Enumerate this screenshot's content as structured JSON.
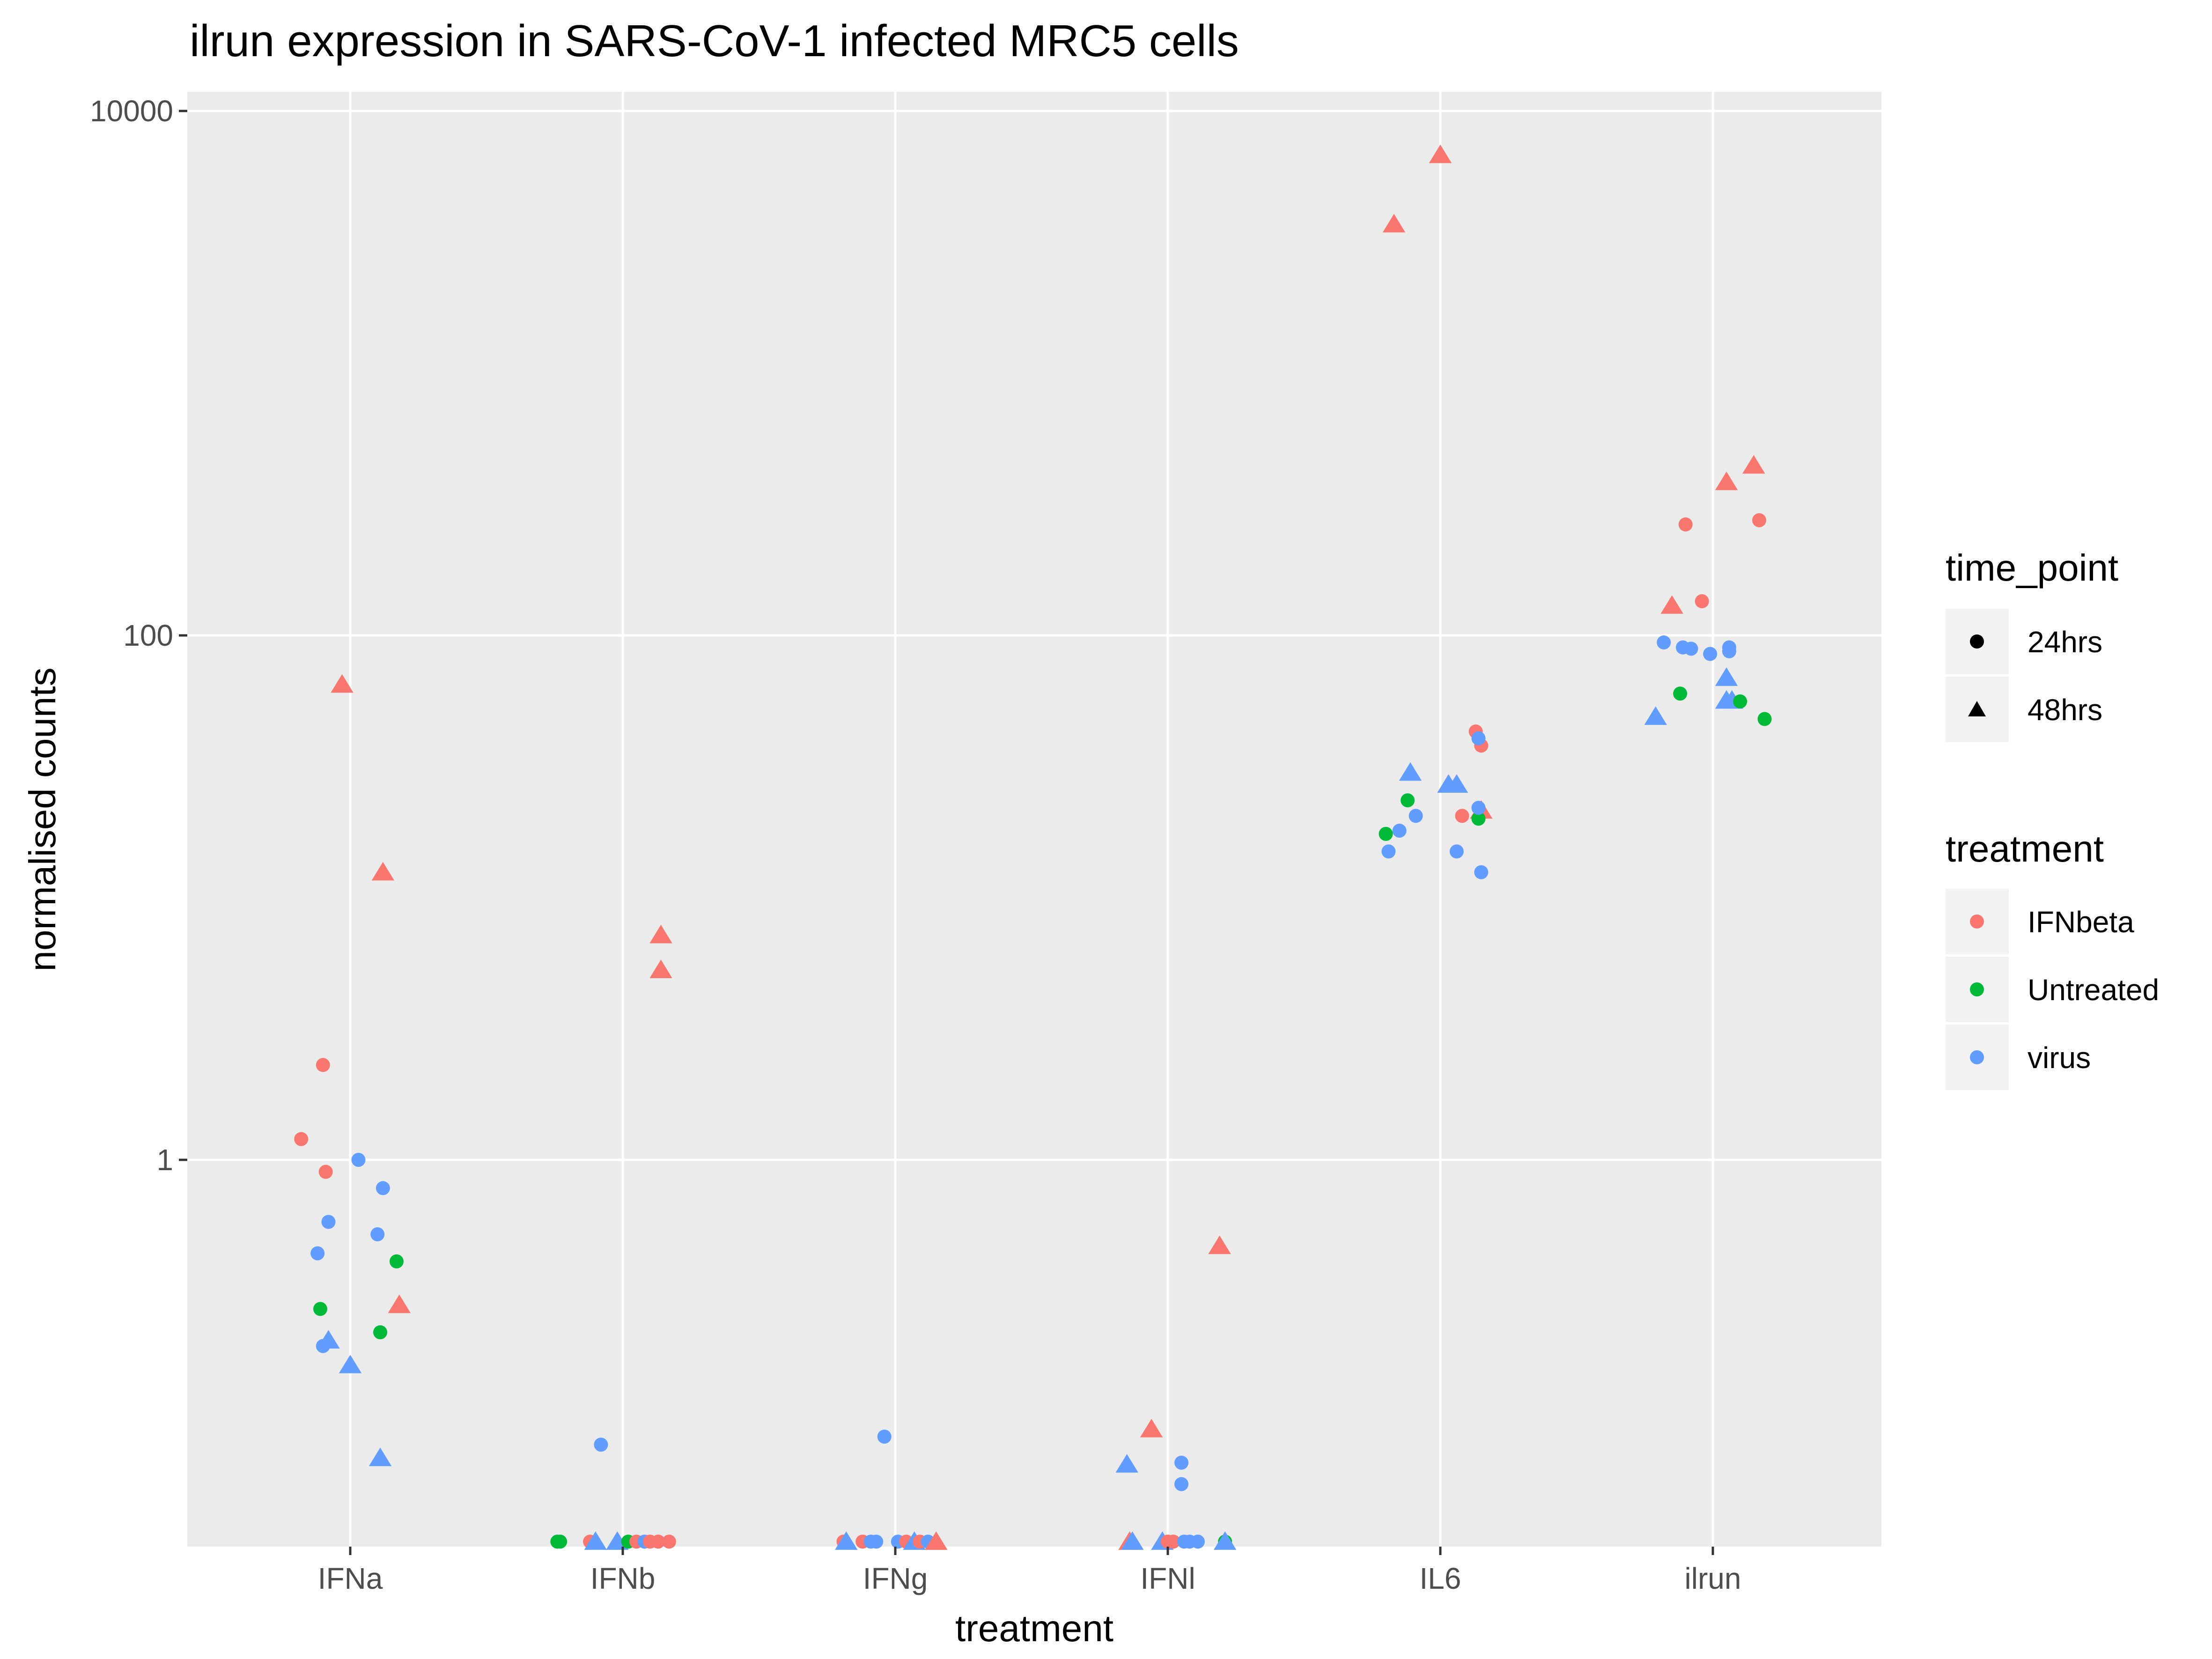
{
  "chart_data": {
    "type": "scatter",
    "title": "ilrun expression in SARS-CoV-1 infected MRC5 cells",
    "xlabel": "treatment",
    "ylabel": "normalised counts",
    "x_scale": "categorical",
    "y_scale": "log10",
    "ylim": [
      0.035,
      10000
    ],
    "y_ticks": [
      1,
      100,
      10000
    ],
    "y_tick_labels": [
      "1",
      "100",
      "10000"
    ],
    "categories": [
      "IFNa",
      "IFNb",
      "IFNg",
      "IFNl",
      "IL6",
      "ilrun"
    ],
    "grid": true,
    "legend_position": "right",
    "legends": [
      {
        "title": "time_point",
        "key": "time_point",
        "entries": [
          {
            "label": "24hrs",
            "shape": "circle"
          },
          {
            "label": "48hrs",
            "shape": "triangle"
          }
        ]
      },
      {
        "title": "treatment",
        "key": "treatment",
        "entries": [
          {
            "label": "IFNbeta",
            "color": "#F8766D"
          },
          {
            "label": "Untreated",
            "color": "#00BA38"
          },
          {
            "label": "virus",
            "color": "#619CFF"
          }
        ]
      }
    ],
    "points": [
      {
        "category": "IFNa",
        "jitter": -0.18,
        "y": 1.2,
        "treatment": "IFNbeta",
        "time_point": "24hrs"
      },
      {
        "category": "IFNa",
        "jitter": -0.1,
        "y": 2.3,
        "treatment": "IFNbeta",
        "time_point": "24hrs"
      },
      {
        "category": "IFNa",
        "jitter": -0.09,
        "y": 0.9,
        "treatment": "IFNbeta",
        "time_point": "24hrs"
      },
      {
        "category": "IFNa",
        "jitter": -0.03,
        "y": 65,
        "treatment": "IFNbeta",
        "time_point": "48hrs"
      },
      {
        "category": "IFNa",
        "jitter": 0.12,
        "y": 12.5,
        "treatment": "IFNbeta",
        "time_point": "48hrs"
      },
      {
        "category": "IFNa",
        "jitter": 0.18,
        "y": 0.28,
        "treatment": "IFNbeta",
        "time_point": "48hrs"
      },
      {
        "category": "IFNa",
        "jitter": -0.11,
        "y": 0.27,
        "treatment": "Untreated",
        "time_point": "24hrs"
      },
      {
        "category": "IFNa",
        "jitter": 0.11,
        "y": 0.22,
        "treatment": "Untreated",
        "time_point": "24hrs"
      },
      {
        "category": "IFNa",
        "jitter": 0.17,
        "y": 0.41,
        "treatment": "Untreated",
        "time_point": "24hrs"
      },
      {
        "category": "IFNa",
        "jitter": 0.03,
        "y": 1.0,
        "treatment": "virus",
        "time_point": "24hrs"
      },
      {
        "category": "IFNa",
        "jitter": 0.12,
        "y": 0.78,
        "treatment": "virus",
        "time_point": "24hrs"
      },
      {
        "category": "IFNa",
        "jitter": -0.08,
        "y": 0.58,
        "treatment": "virus",
        "time_point": "24hrs"
      },
      {
        "category": "IFNa",
        "jitter": 0.1,
        "y": 0.52,
        "treatment": "virus",
        "time_point": "24hrs"
      },
      {
        "category": "IFNa",
        "jitter": -0.12,
        "y": 0.44,
        "treatment": "virus",
        "time_point": "24hrs"
      },
      {
        "category": "IFNa",
        "jitter": -0.1,
        "y": 0.195,
        "treatment": "virus",
        "time_point": "24hrs"
      },
      {
        "category": "IFNa",
        "jitter": -0.08,
        "y": 0.205,
        "treatment": "virus",
        "time_point": "48hrs"
      },
      {
        "category": "IFNa",
        "jitter": 0.0,
        "y": 0.165,
        "treatment": "virus",
        "time_point": "48hrs"
      },
      {
        "category": "IFNa",
        "jitter": 0.11,
        "y": 0.073,
        "treatment": "virus",
        "time_point": "48hrs"
      },
      {
        "category": "IFNb",
        "jitter": 0.14,
        "y": 7.2,
        "treatment": "IFNbeta",
        "time_point": "48hrs"
      },
      {
        "category": "IFNb",
        "jitter": 0.14,
        "y": 5.3,
        "treatment": "IFNbeta",
        "time_point": "48hrs"
      },
      {
        "category": "IFNb",
        "jitter": -0.08,
        "y": 0.082,
        "treatment": "virus",
        "time_point": "24hrs"
      },
      {
        "category": "IFNb",
        "jitter": -0.24,
        "y": 0.035,
        "treatment": "Untreated",
        "time_point": "24hrs"
      },
      {
        "category": "IFNb",
        "jitter": -0.23,
        "y": 0.035,
        "treatment": "Untreated",
        "time_point": "24hrs"
      },
      {
        "category": "IFNb",
        "jitter": -0.12,
        "y": 0.035,
        "treatment": "IFNbeta",
        "time_point": "24hrs"
      },
      {
        "category": "IFNb",
        "jitter": -0.1,
        "y": 0.035,
        "treatment": "virus",
        "time_point": "48hrs"
      },
      {
        "category": "IFNb",
        "jitter": -0.02,
        "y": 0.035,
        "treatment": "virus",
        "time_point": "48hrs"
      },
      {
        "category": "IFNb",
        "jitter": 0.02,
        "y": 0.035,
        "treatment": "Untreated",
        "time_point": "24hrs"
      },
      {
        "category": "IFNb",
        "jitter": 0.05,
        "y": 0.035,
        "treatment": "IFNbeta",
        "time_point": "24hrs"
      },
      {
        "category": "IFNb",
        "jitter": 0.08,
        "y": 0.035,
        "treatment": "virus",
        "time_point": "24hrs"
      },
      {
        "category": "IFNb",
        "jitter": 0.1,
        "y": 0.035,
        "treatment": "IFNbeta",
        "time_point": "24hrs"
      },
      {
        "category": "IFNb",
        "jitter": 0.13,
        "y": 0.035,
        "treatment": "IFNbeta",
        "time_point": "24hrs"
      },
      {
        "category": "IFNb",
        "jitter": 0.17,
        "y": 0.035,
        "treatment": "IFNbeta",
        "time_point": "24hrs"
      },
      {
        "category": "IFNg",
        "jitter": -0.04,
        "y": 0.088,
        "treatment": "virus",
        "time_point": "24hrs"
      },
      {
        "category": "IFNg",
        "jitter": -0.19,
        "y": 0.035,
        "treatment": "IFNbeta",
        "time_point": "24hrs"
      },
      {
        "category": "IFNg",
        "jitter": -0.18,
        "y": 0.035,
        "treatment": "virus",
        "time_point": "48hrs"
      },
      {
        "category": "IFNg",
        "jitter": -0.12,
        "y": 0.035,
        "treatment": "IFNbeta",
        "time_point": "24hrs"
      },
      {
        "category": "IFNg",
        "jitter": -0.09,
        "y": 0.035,
        "treatment": "virus",
        "time_point": "24hrs"
      },
      {
        "category": "IFNg",
        "jitter": -0.07,
        "y": 0.035,
        "treatment": "virus",
        "time_point": "24hrs"
      },
      {
        "category": "IFNg",
        "jitter": 0.01,
        "y": 0.035,
        "treatment": "virus",
        "time_point": "24hrs"
      },
      {
        "category": "IFNg",
        "jitter": 0.04,
        "y": 0.035,
        "treatment": "IFNbeta",
        "time_point": "24hrs"
      },
      {
        "category": "IFNg",
        "jitter": 0.07,
        "y": 0.035,
        "treatment": "virus",
        "time_point": "48hrs"
      },
      {
        "category": "IFNg",
        "jitter": 0.09,
        "y": 0.035,
        "treatment": "IFNbeta",
        "time_point": "24hrs"
      },
      {
        "category": "IFNg",
        "jitter": 0.12,
        "y": 0.035,
        "treatment": "virus",
        "time_point": "24hrs"
      },
      {
        "category": "IFNg",
        "jitter": 0.15,
        "y": 0.035,
        "treatment": "IFNbeta",
        "time_point": "48hrs"
      },
      {
        "category": "IFNl",
        "jitter": 0.19,
        "y": 0.47,
        "treatment": "IFNbeta",
        "time_point": "48hrs"
      },
      {
        "category": "IFNl",
        "jitter": -0.06,
        "y": 0.094,
        "treatment": "IFNbeta",
        "time_point": "48hrs"
      },
      {
        "category": "IFNl",
        "jitter": -0.15,
        "y": 0.069,
        "treatment": "virus",
        "time_point": "48hrs"
      },
      {
        "category": "IFNl",
        "jitter": 0.05,
        "y": 0.07,
        "treatment": "virus",
        "time_point": "24hrs"
      },
      {
        "category": "IFNl",
        "jitter": 0.05,
        "y": 0.058,
        "treatment": "virus",
        "time_point": "24hrs"
      },
      {
        "category": "IFNl",
        "jitter": -0.14,
        "y": 0.035,
        "treatment": "IFNbeta",
        "time_point": "48hrs"
      },
      {
        "category": "IFNl",
        "jitter": -0.13,
        "y": 0.035,
        "treatment": "virus",
        "time_point": "48hrs"
      },
      {
        "category": "IFNl",
        "jitter": -0.02,
        "y": 0.035,
        "treatment": "virus",
        "time_point": "48hrs"
      },
      {
        "category": "IFNl",
        "jitter": 0.0,
        "y": 0.035,
        "treatment": "IFNbeta",
        "time_point": "24hrs"
      },
      {
        "category": "IFNl",
        "jitter": 0.02,
        "y": 0.035,
        "treatment": "IFNbeta",
        "time_point": "24hrs"
      },
      {
        "category": "IFNl",
        "jitter": 0.06,
        "y": 0.035,
        "treatment": "virus",
        "time_point": "24hrs"
      },
      {
        "category": "IFNl",
        "jitter": 0.08,
        "y": 0.035,
        "treatment": "virus",
        "time_point": "24hrs"
      },
      {
        "category": "IFNl",
        "jitter": 0.11,
        "y": 0.035,
        "treatment": "virus",
        "time_point": "24hrs"
      },
      {
        "category": "IFNl",
        "jitter": 0.21,
        "y": 0.035,
        "treatment": "Untreated",
        "time_point": "24hrs"
      },
      {
        "category": "IFNl",
        "jitter": 0.21,
        "y": 0.035,
        "treatment": "virus",
        "time_point": "48hrs"
      },
      {
        "category": "IL6",
        "jitter": 0.0,
        "y": 6800,
        "treatment": "IFNbeta",
        "time_point": "48hrs"
      },
      {
        "category": "IL6",
        "jitter": -0.17,
        "y": 3700,
        "treatment": "IFNbeta",
        "time_point": "48hrs"
      },
      {
        "category": "IL6",
        "jitter": 0.13,
        "y": 43,
        "treatment": "IFNbeta",
        "time_point": "24hrs"
      },
      {
        "category": "IL6",
        "jitter": 0.15,
        "y": 38,
        "treatment": "IFNbeta",
        "time_point": "24hrs"
      },
      {
        "category": "IL6",
        "jitter": 0.08,
        "y": 20.5,
        "treatment": "IFNbeta",
        "time_point": "24hrs"
      },
      {
        "category": "IL6",
        "jitter": 0.15,
        "y": 21.5,
        "treatment": "IFNbeta",
        "time_point": "48hrs"
      },
      {
        "category": "IL6",
        "jitter": -0.12,
        "y": 23.5,
        "treatment": "Untreated",
        "time_point": "24hrs"
      },
      {
        "category": "IL6",
        "jitter": -0.2,
        "y": 17.5,
        "treatment": "Untreated",
        "time_point": "24hrs"
      },
      {
        "category": "IL6",
        "jitter": 0.14,
        "y": 20,
        "treatment": "Untreated",
        "time_point": "24hrs"
      },
      {
        "category": "IL6",
        "jitter": -0.11,
        "y": 30,
        "treatment": "virus",
        "time_point": "48hrs"
      },
      {
        "category": "IL6",
        "jitter": 0.03,
        "y": 27,
        "treatment": "virus",
        "time_point": "48hrs"
      },
      {
        "category": "IL6",
        "jitter": 0.06,
        "y": 27,
        "treatment": "virus",
        "time_point": "48hrs"
      },
      {
        "category": "IL6",
        "jitter": 0.14,
        "y": 40.5,
        "treatment": "virus",
        "time_point": "24hrs"
      },
      {
        "category": "IL6",
        "jitter": 0.14,
        "y": 22,
        "treatment": "virus",
        "time_point": "24hrs"
      },
      {
        "category": "IL6",
        "jitter": -0.09,
        "y": 20.5,
        "treatment": "virus",
        "time_point": "24hrs"
      },
      {
        "category": "IL6",
        "jitter": -0.15,
        "y": 18,
        "treatment": "virus",
        "time_point": "24hrs"
      },
      {
        "category": "IL6",
        "jitter": -0.19,
        "y": 15,
        "treatment": "virus",
        "time_point": "24hrs"
      },
      {
        "category": "IL6",
        "jitter": 0.06,
        "y": 15,
        "treatment": "virus",
        "time_point": "24hrs"
      },
      {
        "category": "IL6",
        "jitter": 0.15,
        "y": 12.5,
        "treatment": "virus",
        "time_point": "24hrs"
      },
      {
        "category": "ilrun",
        "jitter": 0.15,
        "y": 445,
        "treatment": "IFNbeta",
        "time_point": "48hrs"
      },
      {
        "category": "ilrun",
        "jitter": 0.05,
        "y": 385,
        "treatment": "IFNbeta",
        "time_point": "48hrs"
      },
      {
        "category": "ilrun",
        "jitter": -0.1,
        "y": 265,
        "treatment": "IFNbeta",
        "time_point": "24hrs"
      },
      {
        "category": "ilrun",
        "jitter": 0.17,
        "y": 275,
        "treatment": "IFNbeta",
        "time_point": "24hrs"
      },
      {
        "category": "ilrun",
        "jitter": -0.04,
        "y": 135,
        "treatment": "IFNbeta",
        "time_point": "24hrs"
      },
      {
        "category": "ilrun",
        "jitter": -0.15,
        "y": 130,
        "treatment": "IFNbeta",
        "time_point": "48hrs"
      },
      {
        "category": "ilrun",
        "jitter": -0.18,
        "y": 94,
        "treatment": "virus",
        "time_point": "24hrs"
      },
      {
        "category": "ilrun",
        "jitter": -0.11,
        "y": 90,
        "treatment": "virus",
        "time_point": "24hrs"
      },
      {
        "category": "ilrun",
        "jitter": -0.08,
        "y": 89,
        "treatment": "virus",
        "time_point": "24hrs"
      },
      {
        "category": "ilrun",
        "jitter": -0.01,
        "y": 85,
        "treatment": "virus",
        "time_point": "24hrs"
      },
      {
        "category": "ilrun",
        "jitter": 0.06,
        "y": 87,
        "treatment": "virus",
        "time_point": "24hrs"
      },
      {
        "category": "ilrun",
        "jitter": 0.06,
        "y": 90,
        "treatment": "virus",
        "time_point": "24hrs"
      },
      {
        "category": "ilrun",
        "jitter": 0.05,
        "y": 69,
        "treatment": "virus",
        "time_point": "48hrs"
      },
      {
        "category": "ilrun",
        "jitter": 0.05,
        "y": 56.5,
        "treatment": "virus",
        "time_point": "48hrs"
      },
      {
        "category": "ilrun",
        "jitter": 0.07,
        "y": 56.5,
        "treatment": "virus",
        "time_point": "48hrs"
      },
      {
        "category": "ilrun",
        "jitter": -0.21,
        "y": 49,
        "treatment": "virus",
        "time_point": "48hrs"
      },
      {
        "category": "ilrun",
        "jitter": -0.12,
        "y": 60,
        "treatment": "Untreated",
        "time_point": "24hrs"
      },
      {
        "category": "ilrun",
        "jitter": 0.1,
        "y": 56,
        "treatment": "Untreated",
        "time_point": "24hrs"
      },
      {
        "category": "ilrun",
        "jitter": 0.19,
        "y": 48,
        "treatment": "Untreated",
        "time_point": "24hrs"
      }
    ]
  }
}
